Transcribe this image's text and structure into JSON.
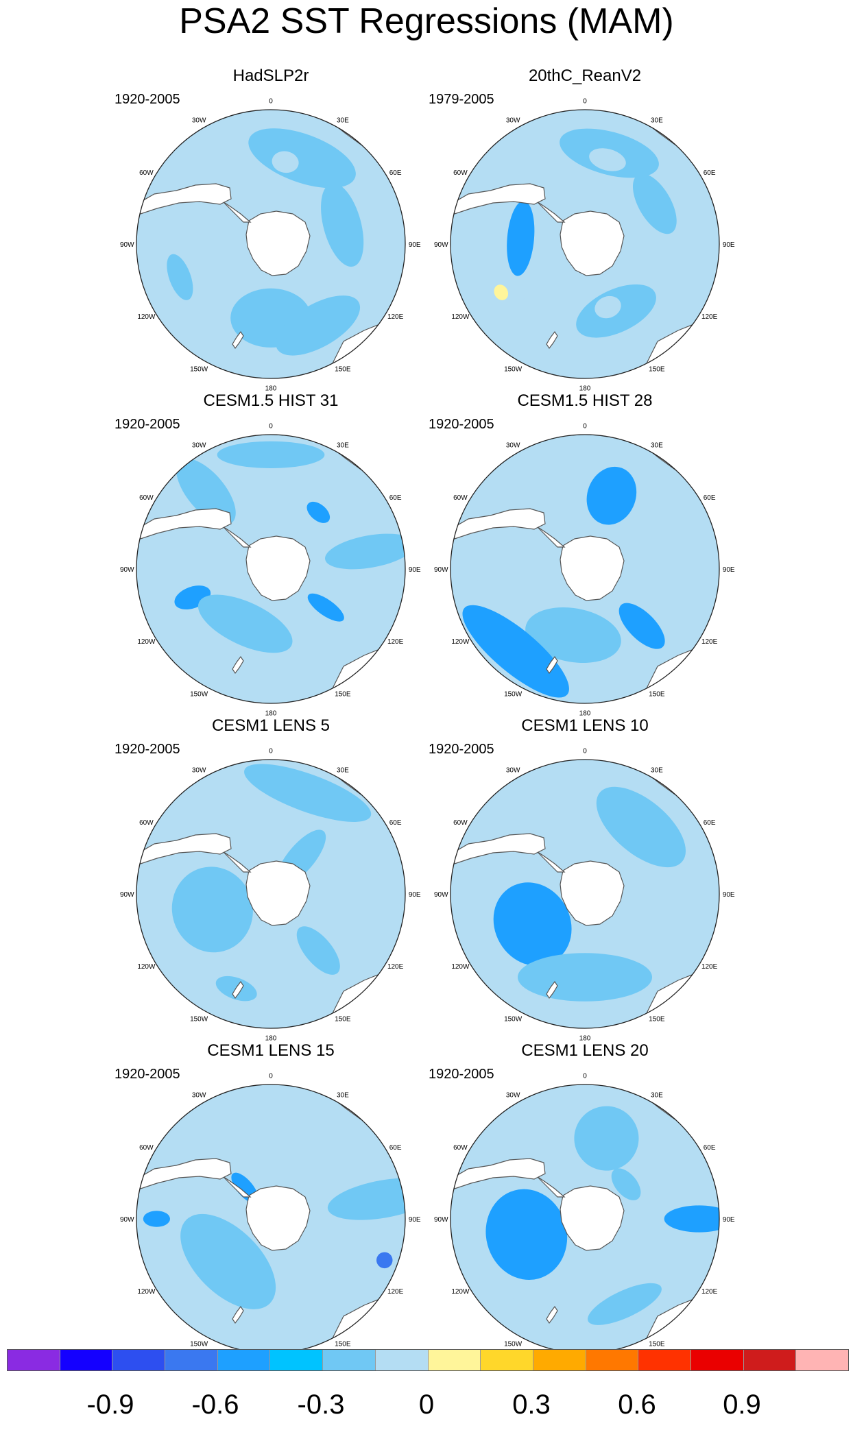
{
  "title": "PSA2 SST Regressions (MAM)",
  "panels": [
    {
      "title": "HadSLP2r",
      "period": "1920-2005",
      "blobs": [
        {
          "lon": 20,
          "r": 0.68,
          "rx": 0.42,
          "ry": 0.18,
          "level": 4
        },
        {
          "lon": 10,
          "r": 0.62,
          "rx": 0.1,
          "ry": 0.08,
          "level": 5
        },
        {
          "lon": 75,
          "r": 0.55,
          "rx": 0.32,
          "ry": 0.14,
          "level": 4
        },
        {
          "lon": 180,
          "r": 0.55,
          "rx": 0.3,
          "ry": 0.22,
          "level": 4
        },
        {
          "lon": 150,
          "r": 0.7,
          "rx": 0.35,
          "ry": 0.16,
          "level": 4
        },
        {
          "lon": 250,
          "r": 0.72,
          "rx": 0.18,
          "ry": 0.08,
          "level": 4
        }
      ]
    },
    {
      "title": "20thC_ReanV2",
      "period": "1979-2005",
      "blobs": [
        {
          "lon": 15,
          "r": 0.7,
          "rx": 0.38,
          "ry": 0.16,
          "level": 4
        },
        {
          "lon": 15,
          "r": 0.65,
          "rx": 0.14,
          "ry": 0.08,
          "level": 5
        },
        {
          "lon": 240,
          "r": 0.72,
          "rx": 0.14,
          "ry": 0.28,
          "level": 5
        },
        {
          "lon": 240,
          "r": 0.72,
          "rx": 0.06,
          "ry": 0.05,
          "level": 6
        },
        {
          "lon": 155,
          "r": 0.55,
          "rx": 0.32,
          "ry": 0.16,
          "level": 4
        },
        {
          "lon": 160,
          "r": 0.5,
          "rx": 0.1,
          "ry": 0.08,
          "level": 5
        },
        {
          "lon": 275,
          "r": 0.48,
          "rx": 0.28,
          "ry": 0.1,
          "level": 2
        },
        {
          "lon": 60,
          "r": 0.6,
          "rx": 0.25,
          "ry": 0.12,
          "level": 4
        }
      ]
    },
    {
      "title": "CESM1.5 HIST 31",
      "period": "1920-2005",
      "blobs": [
        {
          "lon": 40,
          "r": 0.55,
          "rx": 0.1,
          "ry": 0.06,
          "level": 2
        },
        {
          "lon": 250,
          "r": 0.62,
          "rx": 0.08,
          "ry": 0.14,
          "level": 2
        },
        {
          "lon": 125,
          "r": 0.5,
          "rx": 0.06,
          "ry": 0.16,
          "level": 2
        },
        {
          "lon": 205,
          "r": 0.45,
          "rx": 0.38,
          "ry": 0.16,
          "level": 4
        },
        {
          "lon": 320,
          "r": 0.75,
          "rx": 0.14,
          "ry": 0.3,
          "level": 4
        },
        {
          "lon": 80,
          "r": 0.75,
          "rx": 0.12,
          "ry": 0.34,
          "level": 4
        },
        {
          "lon": 0,
          "r": 0.85,
          "rx": 0.4,
          "ry": 0.1,
          "level": 4
        }
      ]
    },
    {
      "title": "CESM1.5 HIST 28",
      "period": "1920-2005",
      "blobs": [
        {
          "lon": 15,
          "r": 0.58,
          "rx": 0.1,
          "ry": 0.12,
          "level": 1
        },
        {
          "lon": 20,
          "r": 0.58,
          "rx": 0.18,
          "ry": 0.22,
          "level": 2
        },
        {
          "lon": 190,
          "r": 0.5,
          "rx": 0.25,
          "ry": 0.12,
          "level": 5
        },
        {
          "lon": 190,
          "r": 0.5,
          "rx": 0.36,
          "ry": 0.2,
          "level": 4
        },
        {
          "lon": 220,
          "r": 0.8,
          "rx": 0.5,
          "ry": 0.16,
          "level": 2
        },
        {
          "lon": 90,
          "r": 0.9,
          "rx": 0.1,
          "ry": 0.28,
          "level": 5
        },
        {
          "lon": 135,
          "r": 0.6,
          "rx": 0.1,
          "ry": 0.22,
          "level": 2
        },
        {
          "lon": 275,
          "r": 0.85,
          "rx": 0.25,
          "ry": 0.08,
          "level": 5
        }
      ]
    },
    {
      "title": "CESM1 LENS 5",
      "period": "1920-2005",
      "blobs": [
        {
          "lon": 255,
          "r": 0.45,
          "rx": 0.22,
          "ry": 0.22,
          "level": 5
        },
        {
          "lon": 255,
          "r": 0.45,
          "rx": 0.32,
          "ry": 0.3,
          "level": 4
        },
        {
          "lon": 10,
          "r": 0.55,
          "rx": 0.1,
          "ry": 0.05,
          "level": 5
        },
        {
          "lon": 20,
          "r": 0.8,
          "rx": 0.5,
          "ry": 0.14,
          "level": 4
        },
        {
          "lon": 140,
          "r": 0.55,
          "rx": 0.1,
          "ry": 0.22,
          "level": 4
        },
        {
          "lon": 200,
          "r": 0.75,
          "rx": 0.16,
          "ry": 0.08,
          "level": 4
        },
        {
          "lon": 40,
          "r": 0.35,
          "rx": 0.1,
          "ry": 0.26,
          "level": 4
        }
      ]
    },
    {
      "title": "CESM1 LENS 10",
      "period": "1920-2005",
      "blobs": [
        {
          "lon": 240,
          "r": 0.45,
          "rx": 0.2,
          "ry": 0.18,
          "level": 1
        },
        {
          "lon": 240,
          "r": 0.45,
          "rx": 0.32,
          "ry": 0.28,
          "level": 2
        },
        {
          "lon": 320,
          "r": 0.4,
          "rx": 0.1,
          "ry": 0.08,
          "level": 5
        },
        {
          "lon": 180,
          "r": 0.75,
          "rx": 0.34,
          "ry": 0.1,
          "level": 5
        },
        {
          "lon": 180,
          "r": 0.62,
          "rx": 0.5,
          "ry": 0.18,
          "level": 4
        },
        {
          "lon": 110,
          "r": 0.85,
          "rx": 0.14,
          "ry": 0.06,
          "level": 5
        },
        {
          "lon": 40,
          "r": 0.65,
          "rx": 0.4,
          "ry": 0.2,
          "level": 4
        }
      ]
    },
    {
      "title": "CESM1 LENS 15",
      "period": "1920-2005",
      "blobs": [
        {
          "lon": 225,
          "r": 0.45,
          "rx": 0.3,
          "ry": 0.16,
          "level": 5
        },
        {
          "lon": 225,
          "r": 0.45,
          "rx": 0.44,
          "ry": 0.24,
          "level": 4
        },
        {
          "lon": 75,
          "r": 0.85,
          "rx": 0.1,
          "ry": 0.3,
          "level": 5
        },
        {
          "lon": 80,
          "r": 0.85,
          "rx": 0.14,
          "ry": 0.42,
          "level": 4
        },
        {
          "lon": 110,
          "r": 0.9,
          "rx": 0.06,
          "ry": 0.06,
          "level": 1
        },
        {
          "lon": 270,
          "r": 0.85,
          "rx": 0.06,
          "ry": 0.1,
          "level": 2
        },
        {
          "lon": 320,
          "r": 0.3,
          "rx": 0.06,
          "ry": 0.14,
          "level": 2
        }
      ]
    },
    {
      "title": "CESM1 LENS 20",
      "period": "1920-2005",
      "blobs": [
        {
          "lon": 15,
          "r": 0.62,
          "rx": 0.14,
          "ry": 0.14,
          "level": 5
        },
        {
          "lon": 15,
          "r": 0.62,
          "rx": 0.24,
          "ry": 0.24,
          "level": 4
        },
        {
          "lon": 255,
          "r": 0.45,
          "rx": 0.18,
          "ry": 0.18,
          "level": 1
        },
        {
          "lon": 255,
          "r": 0.45,
          "rx": 0.34,
          "ry": 0.3,
          "level": 2
        },
        {
          "lon": 215,
          "r": 0.85,
          "rx": 0.1,
          "ry": 0.2,
          "level": 5
        },
        {
          "lon": 90,
          "r": 0.85,
          "rx": 0.1,
          "ry": 0.26,
          "level": 2
        },
        {
          "lon": 110,
          "r": 0.9,
          "rx": 0.1,
          "ry": 0.05,
          "level": 5
        },
        {
          "lon": 50,
          "r": 0.4,
          "rx": 0.14,
          "ry": 0.08,
          "level": 4
        },
        {
          "lon": 155,
          "r": 0.7,
          "rx": 0.3,
          "ry": 0.1,
          "level": 4
        }
      ]
    }
  ],
  "lon_labels": [
    "0",
    "30E",
    "60E",
    "90E",
    "120E",
    "150E",
    "180",
    "150W",
    "120W",
    "90W",
    "60W",
    "30W"
  ],
  "colorbar": {
    "colors": [
      "#8a2be2",
      "#1400ff",
      "#2d4ff0",
      "#3a78f0",
      "#1ea0ff",
      "#00c3ff",
      "#70c8f4",
      "#b4ddf3",
      "#fff59a",
      "#ffd72a",
      "#ffaa00",
      "#ff7800",
      "#ff3200",
      "#ea0000",
      "#cf1c1c",
      "#ffb4b4"
    ],
    "labels": [
      "-0.9",
      "-0.6",
      "-0.3",
      "0",
      "0.3",
      "0.6",
      "0.9"
    ]
  },
  "colors": {
    "background_anomaly": "#b4ddf3",
    "land": "#ffffff",
    "coast": "#555555"
  }
}
